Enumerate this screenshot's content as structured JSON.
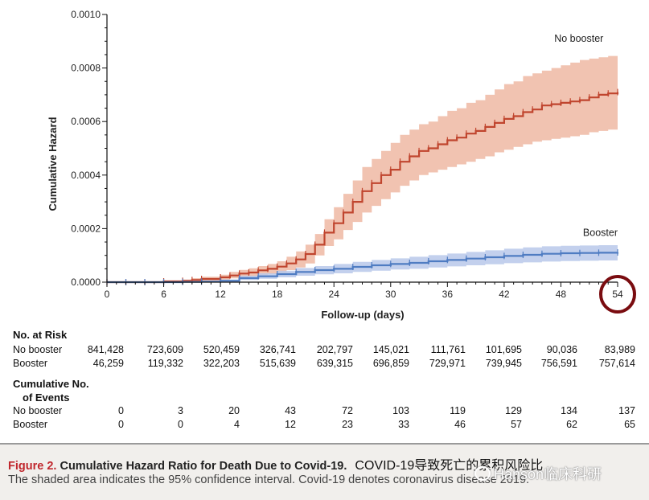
{
  "chart_data": {
    "type": "line",
    "xlabel": "Follow-up (days)",
    "ylabel": "Cumulative Hazard",
    "xlim": [
      0,
      54
    ],
    "ylim": [
      0,
      0.001
    ],
    "x_ticks": [
      "0",
      "6",
      "12",
      "18",
      "24",
      "30",
      "36",
      "42",
      "48",
      "54"
    ],
    "y_ticks": [
      "0.0000",
      "0.0002",
      "0.0004",
      "0.0006",
      "0.0008",
      "0.0010"
    ],
    "grid": false,
    "highlight_tick": "54",
    "series": [
      {
        "name": "No booster",
        "color": "#c0452e",
        "band_color": "#eeb9a3",
        "x": [
          0,
          2,
          4,
          6,
          8,
          9,
          10,
          12,
          13,
          14,
          15,
          16,
          17,
          18,
          19,
          20,
          21,
          22,
          23,
          24,
          25,
          26,
          27,
          28,
          29,
          30,
          31,
          32,
          33,
          34,
          35,
          36,
          37,
          38,
          39,
          40,
          41,
          42,
          43,
          44,
          45,
          46,
          47,
          48,
          49,
          50,
          51,
          52,
          53,
          54
        ],
        "y": [
          0,
          0,
          0,
          3e-06,
          5e-06,
          8e-06,
          1.2e-05,
          1.8e-05,
          2.5e-05,
          3.2e-05,
          3.6e-05,
          4.4e-05,
          5e-05,
          5.8e-05,
          7e-05,
          8.5e-05,
          0.000105,
          0.00014,
          0.000185,
          0.00022,
          0.00026,
          0.0003,
          0.00034,
          0.00037,
          0.0004,
          0.00042,
          0.00045,
          0.00047,
          0.00049,
          0.0005,
          0.000515,
          0.00053,
          0.00054,
          0.000555,
          0.000565,
          0.00058,
          0.000595,
          0.00061,
          0.00062,
          0.000635,
          0.000645,
          0.00066,
          0.000665,
          0.00067,
          0.000675,
          0.00068,
          0.00069,
          0.0007,
          0.000705,
          0.00071
        ],
        "lower": [
          0,
          0,
          0,
          1e-06,
          2e-06,
          4e-06,
          6e-06,
          1e-05,
          1.4e-05,
          1.8e-05,
          2.1e-05,
          2.6e-05,
          3e-05,
          3.6e-05,
          4.5e-05,
          5.5e-05,
          7e-05,
          0.0001,
          0.000135,
          0.00016,
          0.000195,
          0.000225,
          0.00026,
          0.000285,
          0.00031,
          0.000335,
          0.00036,
          0.00038,
          0.0004,
          0.00041,
          0.00042,
          0.00043,
          0.00044,
          0.00045,
          0.00046,
          0.00047,
          0.000485,
          0.000495,
          0.000505,
          0.000515,
          0.000525,
          0.00053,
          0.000535,
          0.00054,
          0.000545,
          0.00055,
          0.00056,
          0.000565,
          0.00057,
          0.000575
        ],
        "upper": [
          0,
          2e-06,
          3e-06,
          6e-06,
          1e-05,
          1.5e-05,
          2e-05,
          2.8e-05,
          3.8e-05,
          4.6e-05,
          5.2e-05,
          6e-05,
          6.8e-05,
          7.8e-05,
          9.5e-05,
          0.000115,
          0.00014,
          0.00018,
          0.000235,
          0.00028,
          0.00033,
          0.00038,
          0.00043,
          0.00046,
          0.00049,
          0.00052,
          0.00055,
          0.00057,
          0.00059,
          0.0006,
          0.00062,
          0.00064,
          0.00065,
          0.00067,
          0.00068,
          0.0007,
          0.00072,
          0.00074,
          0.00075,
          0.00077,
          0.00078,
          0.00079,
          0.0008,
          0.00081,
          0.00082,
          0.00083,
          0.000835,
          0.00084,
          0.000845,
          0.00085
        ]
      },
      {
        "name": "Booster",
        "color": "#4f7cc2",
        "band_color": "#b8c8ea",
        "x": [
          0,
          2,
          4,
          6,
          8,
          10,
          12,
          14,
          16,
          18,
          20,
          22,
          24,
          26,
          28,
          30,
          32,
          34,
          36,
          38,
          40,
          42,
          44,
          46,
          48,
          50,
          52,
          54
        ],
        "y": [
          0,
          0,
          0,
          0,
          1e-06,
          2e-06,
          5e-06,
          1.5e-05,
          2.2e-05,
          3e-05,
          3.8e-05,
          4.5e-05,
          5e-05,
          5.7e-05,
          6.3e-05,
          6.8e-05,
          7.2e-05,
          7.8e-05,
          8.3e-05,
          8.8e-05,
          9.3e-05,
          9.8e-05,
          0.000102,
          0.000106,
          0.000108,
          0.000109,
          0.00011,
          0.000111
        ],
        "lower": [
          0,
          0,
          0,
          0,
          0,
          1e-06,
          2e-06,
          8e-06,
          1.3e-05,
          1.8e-05,
          2.4e-05,
          2.9e-05,
          3.3e-05,
          3.8e-05,
          4.3e-05,
          4.7e-05,
          5e-05,
          5.5e-05,
          5.9e-05,
          6.3e-05,
          6.7e-05,
          7.1e-05,
          7.4e-05,
          7.7e-05,
          7.9e-05,
          8e-05,
          8.1e-05,
          8.2e-05
        ],
        "upper": [
          0,
          1e-06,
          2e-06,
          2e-06,
          3e-06,
          5e-06,
          1e-05,
          2.4e-05,
          3.3e-05,
          4.3e-05,
          5.3e-05,
          6e-05,
          6.8e-05,
          7.6e-05,
          8.3e-05,
          8.9e-05,
          9.5e-05,
          0.000101,
          0.000107,
          0.000113,
          0.000119,
          0.000125,
          0.00013,
          0.000134,
          0.000136,
          0.000137,
          0.000138,
          0.00014
        ]
      }
    ]
  },
  "risk_table": {
    "heading": "No. at Risk",
    "rows": [
      {
        "label": "No booster",
        "values": [
          "841,428",
          "723,609",
          "520,459",
          "326,741",
          "202,797",
          "145,021",
          "111,761",
          "101,695",
          "90,036",
          "83,989"
        ]
      },
      {
        "label": "Booster",
        "values": [
          "46,259",
          "119,332",
          "322,203",
          "515,639",
          "639,315",
          "696,859",
          "729,971",
          "739,945",
          "756,591",
          "757,614"
        ]
      }
    ]
  },
  "events_table": {
    "heading_line1": "Cumulative No.",
    "heading_line2": "of Events",
    "rows": [
      {
        "label": "No booster",
        "values": [
          "0",
          "3",
          "20",
          "43",
          "72",
          "103",
          "119",
          "129",
          "134",
          "137"
        ]
      },
      {
        "label": "Booster",
        "values": [
          "0",
          "0",
          "4",
          "12",
          "23",
          "33",
          "46",
          "57",
          "62",
          "65"
        ]
      }
    ]
  },
  "caption": {
    "figure_label": "Figure 2.",
    "title": "Cumulative Hazard Ratio for Death Due to Covid-19.",
    "chinese_note": "COVID-19导致死亡的累积风险比",
    "body": "The shaded area indicates the 95% confidence interval. Covid-19 denotes coronavirus disease 2019.",
    "watermark": "Hanson临床科研"
  }
}
